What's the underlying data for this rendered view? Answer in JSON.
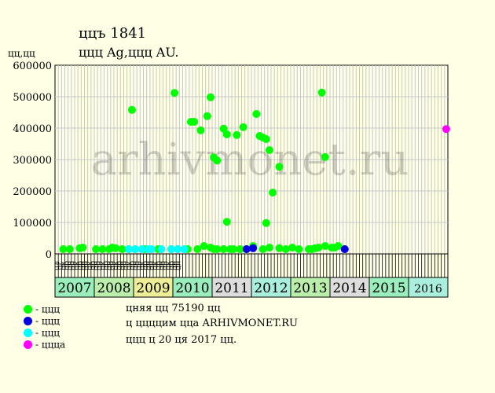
{
  "header": {
    "title": "ццъ 1841",
    "subtitle": "ццц Ag,ццц AU.",
    "y_unit": "цц,цц"
  },
  "legend": [
    {
      "label": "- ццц",
      "color": "#00ff00"
    },
    {
      "label": "- ццц",
      "color": "#0000e0"
    },
    {
      "label": "- ццц",
      "color": "#00ffff"
    },
    {
      "label": "- цццa",
      "color": "#ff00ff"
    }
  ],
  "info": {
    "line1": "цняя цц 75190 цц",
    "line2": "ц ццццим цца ARHIVMONET.RU",
    "line3": "ццц ц 20 ця 2017 цц."
  },
  "watermark": "arhivmonet.ru",
  "chart_data": {
    "type": "scatter",
    "ylim": [
      0,
      600000
    ],
    "y_ticks": [
      "0",
      "100000",
      "200000",
      "300000",
      "400000",
      "500000",
      "600000"
    ],
    "x_axis": "monthly timeline, Jan 2007 – Dec 2016",
    "months": [
      "цл",
      "цг",
      "цк",
      "цр",
      "цн",
      "цн",
      "цк",
      "цр",
      "цн",
      "цн",
      "цк",
      "цр",
      "цн",
      "цн",
      "цк",
      "цр",
      "цн",
      "цн",
      "цк",
      "цр",
      "цн",
      "цн",
      "цк",
      "цр",
      "цн",
      "цн",
      "цк",
      "цр",
      "цн",
      "цн",
      "цк",
      "цр",
      "цн",
      "цн",
      "цк",
      "цр",
      "цн",
      "цн"
    ],
    "years": [
      {
        "label": "2007",
        "color": "#99eebb"
      },
      {
        "label": "2008",
        "color": "#bbeeaa"
      },
      {
        "label": "2009",
        "color": "#eeee99"
      },
      {
        "label": "2010",
        "color": "#99eebb"
      },
      {
        "label": "2011",
        "color": "#dddddd"
      },
      {
        "label": "2012",
        "color": "#aaeedd"
      },
      {
        "label": "2013",
        "color": "#bbeeaa"
      },
      {
        "label": "2014",
        "color": "#dddddd"
      },
      {
        "label": "2015",
        "color": "#99eebb"
      },
      {
        "label": "2016",
        "color": "#aaeedd"
      }
    ],
    "series": [
      {
        "color": "#00ff00",
        "points": [
          [
            "2007-03",
            15000
          ],
          [
            "2007-05",
            15000
          ],
          [
            "2007-08",
            18000
          ],
          [
            "2007-09",
            20000
          ],
          [
            "2008-01",
            15000
          ],
          [
            "2008-03",
            15000
          ],
          [
            "2008-05",
            15000
          ],
          [
            "2008-06",
            20000
          ],
          [
            "2008-07",
            18000
          ],
          [
            "2008-09",
            15000
          ],
          [
            "2008-11",
            15000
          ],
          [
            "2008-12",
            458000
          ],
          [
            "2009-01",
            15000
          ],
          [
            "2009-04",
            15000
          ],
          [
            "2009-08",
            15000
          ],
          [
            "2009-12",
            15000
          ],
          [
            "2010-01",
            512000
          ],
          [
            "2010-02",
            15000
          ],
          [
            "2010-05",
            15000
          ],
          [
            "2010-06",
            420000
          ],
          [
            "2010-07",
            420000
          ],
          [
            "2010-08",
            15000
          ],
          [
            "2010-09",
            393000
          ],
          [
            "2010-10",
            25000
          ],
          [
            "2010-11",
            438000
          ],
          [
            "2010-12",
            498000
          ],
          [
            "2010-12",
            20000
          ],
          [
            "2011-01",
            307000
          ],
          [
            "2011-01",
            15000
          ],
          [
            "2011-02",
            15000
          ],
          [
            "2011-02",
            297000
          ],
          [
            "2011-04",
            398000
          ],
          [
            "2011-04",
            15000
          ],
          [
            "2011-05",
            380000
          ],
          [
            "2011-05",
            102000
          ],
          [
            "2011-06",
            15000
          ],
          [
            "2011-07",
            15000
          ],
          [
            "2011-08",
            378000
          ],
          [
            "2011-09",
            15000
          ],
          [
            "2011-10",
            403000
          ],
          [
            "2011-11",
            15000
          ],
          [
            "2012-01",
            25000
          ],
          [
            "2012-02",
            445000
          ],
          [
            "2012-03",
            375000
          ],
          [
            "2012-04",
            370000
          ],
          [
            "2012-04",
            15000
          ],
          [
            "2012-05",
            365000
          ],
          [
            "2012-05",
            98000
          ],
          [
            "2012-06",
            330000
          ],
          [
            "2012-06",
            20000
          ],
          [
            "2012-07",
            195000
          ],
          [
            "2012-09",
            277000
          ],
          [
            "2012-09",
            18000
          ],
          [
            "2012-11",
            15000
          ],
          [
            "2013-01",
            20000
          ],
          [
            "2013-03",
            15000
          ],
          [
            "2013-06",
            15000
          ],
          [
            "2013-07",
            15000
          ],
          [
            "2013-08",
            18000
          ],
          [
            "2013-09",
            20000
          ],
          [
            "2013-10",
            513000
          ],
          [
            "2013-11",
            25000
          ],
          [
            "2013-11",
            308000
          ],
          [
            "2014-01",
            20000
          ],
          [
            "2014-02",
            20000
          ],
          [
            "2014-03",
            25000
          ],
          [
            "2014-05",
            15000
          ]
        ]
      },
      {
        "color": "#0000e0",
        "points": [
          [
            "2011-11",
            15000
          ],
          [
            "2012-01",
            18000
          ],
          [
            "2014-05",
            15000
          ]
        ]
      },
      {
        "color": "#00ffff",
        "points": [
          [
            "2008-11",
            15000
          ],
          [
            "2009-01",
            15000
          ],
          [
            "2009-03",
            15000
          ],
          [
            "2009-05",
            15000
          ],
          [
            "2009-06",
            15000
          ],
          [
            "2009-09",
            15000
          ],
          [
            "2009-12",
            15000
          ],
          [
            "2010-02",
            15000
          ],
          [
            "2010-04",
            15000
          ]
        ]
      },
      {
        "color": "#ff00ff",
        "points": [
          [
            "2016-12",
            397000
          ]
        ]
      }
    ]
  }
}
